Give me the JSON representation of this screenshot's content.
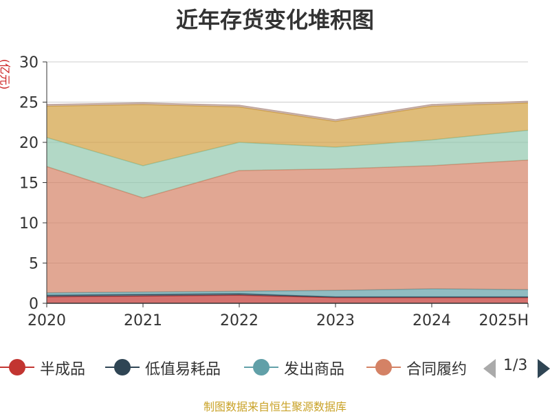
{
  "title": "近年存货变化堆积图",
  "unit": "(亿元)",
  "source": "制图数据来自恒生聚源数据库",
  "pager": "1/3",
  "legend": [
    {
      "name": "半成品",
      "color": "#c23531"
    },
    {
      "name": "低值易耗品",
      "color": "#2f4554"
    },
    {
      "name": "发出商品",
      "color": "#61a0a8"
    },
    {
      "name": "合同履约",
      "color": "#d48265"
    }
  ],
  "chart_data": {
    "type": "area",
    "stacked": true,
    "categories": [
      "2020",
      "2021",
      "2022",
      "2023",
      "2024",
      "2025H"
    ],
    "ylim": [
      0,
      30
    ],
    "yticks": [
      0,
      5,
      10,
      15,
      20,
      25,
      30
    ],
    "ylabel": "(亿元)",
    "grid": true,
    "series": [
      {
        "name": "半成品",
        "color": "#c23531",
        "values": [
          0.8,
          0.9,
          1.0,
          0.7,
          0.7,
          0.7
        ]
      },
      {
        "name": "低值易耗品",
        "color": "#2f4554",
        "values": [
          0.2,
          0.2,
          0.2,
          0.1,
          0.1,
          0.1
        ]
      },
      {
        "name": "发出商品",
        "color": "#61a0a8",
        "values": [
          0.3,
          0.3,
          0.3,
          0.8,
          1.0,
          0.9
        ]
      },
      {
        "name": "合同履约",
        "color": "#d48265",
        "values": [
          15.7,
          11.7,
          15.0,
          15.1,
          15.3,
          16.1
        ]
      },
      {
        "color": "#91c7ae",
        "values": [
          3.6,
          4.0,
          3.5,
          2.7,
          3.2,
          3.7
        ]
      },
      {
        "color": "#d2a040",
        "values": [
          3.9,
          7.6,
          4.4,
          3.2,
          4.2,
          3.4
        ]
      },
      {
        "color": "#bda29a",
        "values": [
          0.2,
          0.2,
          0.2,
          0.2,
          0.2,
          0.2
        ]
      }
    ]
  }
}
